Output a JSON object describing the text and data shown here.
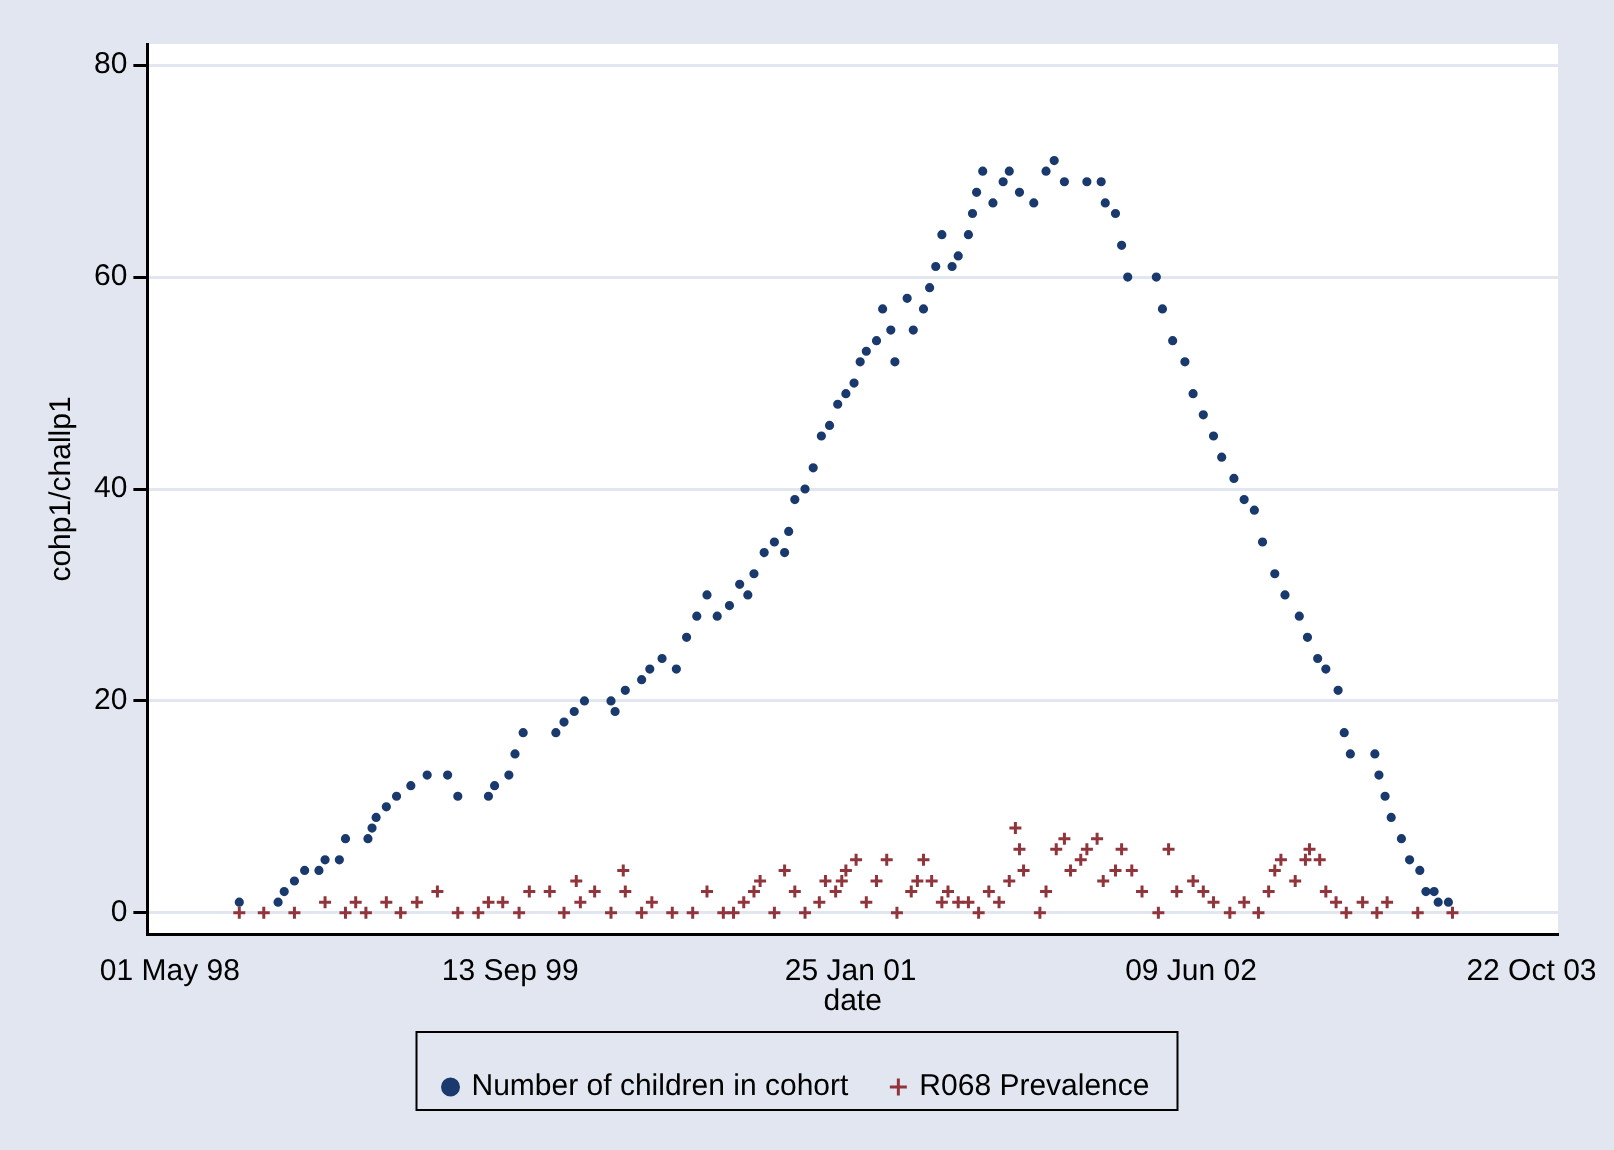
{
  "chart_data": {
    "type": "scatter",
    "xlabel": "date",
    "ylabel": "cohp1/challp1",
    "xlim": [
      "1998-03-29",
      "2003-11-30"
    ],
    "xticks": [
      {
        "value": "1998-05-01",
        "label": "01 May 98"
      },
      {
        "value": "1999-09-13",
        "label": "13 Sep 99"
      },
      {
        "value": "2001-01-25",
        "label": "25 Jan 01"
      },
      {
        "value": "2002-06-09",
        "label": "09 Jun 02"
      },
      {
        "value": "2003-10-22",
        "label": "22 Oct 03"
      }
    ],
    "ylim": [
      -2,
      82
    ],
    "yticks": [
      0,
      20,
      40,
      60,
      80
    ],
    "grid": "y",
    "legend": "bottom",
    "series": [
      {
        "name": "Number of children in cohort",
        "color": "#1a3a6e",
        "marker": "circle",
        "x": [
          "1998-08-11",
          "1998-10-07",
          "1998-10-16",
          "1998-10-31",
          "1998-11-15",
          "1998-12-06",
          "1998-12-15",
          "1999-01-05",
          "1999-01-14",
          "1999-02-16",
          "1999-02-22",
          "1999-02-28",
          "1999-03-15",
          "1999-03-30",
          "1999-04-20",
          "1999-05-14",
          "1999-06-13",
          "1999-06-28",
          "1999-08-12",
          "1999-08-21",
          "1999-09-11",
          "1999-09-20",
          "1999-10-02",
          "1999-11-19",
          "1999-12-01",
          "1999-12-16",
          "1999-12-31",
          "2000-02-08",
          "2000-02-14",
          "2000-02-29",
          "2000-03-24",
          "2000-04-05",
          "2000-04-23",
          "2000-05-14",
          "2000-05-29",
          "2000-06-13",
          "2000-06-28",
          "2000-07-13",
          "2000-07-31",
          "2000-08-15",
          "2000-08-27",
          "2000-09-05",
          "2000-09-20",
          "2000-10-05",
          "2000-10-20",
          "2000-10-26",
          "2000-11-04",
          "2000-11-19",
          "2000-12-01",
          "2000-12-13",
          "2000-12-25",
          "2001-01-06",
          "2001-01-18",
          "2001-01-30",
          "2001-02-08",
          "2001-02-17",
          "2001-03-04",
          "2001-03-13",
          "2001-03-25",
          "2001-03-31",
          "2001-04-18",
          "2001-04-27",
          "2001-05-12",
          "2001-05-21",
          "2001-05-30",
          "2001-06-08",
          "2001-06-23",
          "2001-07-02",
          "2001-07-17",
          "2001-07-23",
          "2001-07-29",
          "2001-08-07",
          "2001-08-22",
          "2001-09-06",
          "2001-09-15",
          "2001-09-30",
          "2001-10-21",
          "2001-11-08",
          "2001-11-20",
          "2001-12-05",
          "2002-01-07",
          "2002-01-28",
          "2002-02-03",
          "2002-02-18",
          "2002-02-27",
          "2002-03-08",
          "2002-04-19",
          "2002-04-28",
          "2002-05-13",
          "2002-05-31",
          "2002-06-12",
          "2002-06-27",
          "2002-07-12",
          "2002-07-24",
          "2002-08-11",
          "2002-08-26",
          "2002-09-10",
          "2002-09-22",
          "2002-10-10",
          "2002-10-25",
          "2002-11-15",
          "2002-11-27",
          "2002-12-12",
          "2002-12-24",
          "2003-01-11",
          "2003-01-20",
          "2003-01-29",
          "2003-03-06",
          "2003-03-12",
          "2003-03-21",
          "2003-03-30",
          "2003-04-14",
          "2003-04-26",
          "2003-05-11",
          "2003-05-20",
          "2003-06-01",
          "2003-06-07",
          "2003-06-22"
        ],
        "values": [
          1,
          1,
          2,
          3,
          4,
          4,
          5,
          5,
          7,
          7,
          8,
          9,
          10,
          11,
          12,
          13,
          13,
          11,
          11,
          12,
          13,
          15,
          17,
          17,
          18,
          19,
          20,
          20,
          19,
          21,
          22,
          23,
          24,
          23,
          26,
          28,
          30,
          28,
          29,
          31,
          30,
          32,
          34,
          35,
          34,
          36,
          39,
          40,
          42,
          45,
          46,
          48,
          49,
          50,
          52,
          53,
          54,
          57,
          55,
          52,
          58,
          55,
          57,
          59,
          61,
          64,
          61,
          62,
          64,
          66,
          68,
          70,
          67,
          69,
          70,
          68,
          67,
          70,
          71,
          69,
          69,
          69,
          67,
          66,
          63,
          60,
          60,
          57,
          54,
          52,
          49,
          47,
          45,
          43,
          41,
          39,
          38,
          35,
          32,
          30,
          28,
          26,
          24,
          23,
          21,
          17,
          15,
          15,
          13,
          11,
          9,
          7,
          5,
          4,
          2,
          2,
          1,
          1
        ]
      },
      {
        "name": "R068 Prevalence",
        "color": "#90353b",
        "marker": "cross",
        "x": [
          "1998-08-11",
          "1998-09-16",
          "1998-10-31",
          "1998-12-15",
          "1999-01-14",
          "1999-01-29",
          "1999-02-13",
          "1999-03-15",
          "1999-04-05",
          "1999-04-29",
          "1999-05-29",
          "1999-06-28",
          "1999-07-28",
          "1999-08-12",
          "1999-09-02",
          "1999-09-26",
          "1999-10-11",
          "1999-11-10",
          "1999-12-01",
          "1999-12-19",
          "1999-12-25",
          "2000-01-15",
          "2000-02-08",
          "2000-02-26",
          "2000-02-29",
          "2000-03-24",
          "2000-04-08",
          "2000-05-08",
          "2000-06-07",
          "2000-06-28",
          "2000-07-22",
          "2000-08-06",
          "2000-08-21",
          "2000-09-05",
          "2000-09-14",
          "2000-10-05",
          "2000-10-20",
          "2000-11-04",
          "2000-11-19",
          "2000-12-10",
          "2000-12-19",
          "2001-01-03",
          "2001-01-12",
          "2001-01-18",
          "2001-02-02",
          "2001-02-17",
          "2001-03-04",
          "2001-03-19",
          "2001-04-03",
          "2001-04-24",
          "2001-05-03",
          "2001-05-12",
          "2001-05-24",
          "2001-06-08",
          "2001-06-17",
          "2001-07-02",
          "2001-07-17",
          "2001-08-01",
          "2001-08-16",
          "2001-08-31",
          "2001-09-15",
          "2001-09-24",
          "2001-09-30",
          "2001-10-06",
          "2001-10-30",
          "2001-11-08",
          "2001-11-23",
          "2001-12-05",
          "2001-12-14",
          "2001-12-29",
          "2002-01-07",
          "2002-01-22",
          "2002-01-31",
          "2002-02-18",
          "2002-02-27",
          "2002-03-14",
          "2002-03-29",
          "2002-04-22",
          "2002-05-07",
          "2002-05-19",
          "2002-06-12",
          "2002-06-27",
          "2002-07-12",
          "2002-08-05",
          "2002-08-26",
          "2002-09-16",
          "2002-10-01",
          "2002-10-10",
          "2002-10-19",
          "2002-11-09",
          "2002-11-24",
          "2002-11-30",
          "2002-12-15",
          "2002-12-24",
          "2003-01-08",
          "2003-01-23",
          "2003-02-16",
          "2003-03-09",
          "2003-03-24",
          "2003-05-08",
          "2003-06-28"
        ],
        "values": [
          0,
          0,
          0,
          1,
          0,
          1,
          0,
          1,
          0,
          1,
          2,
          0,
          0,
          1,
          1,
          0,
          2,
          2,
          0,
          3,
          1,
          2,
          0,
          4,
          2,
          0,
          1,
          0,
          0,
          2,
          0,
          0,
          1,
          2,
          3,
          0,
          4,
          2,
          0,
          1,
          3,
          2,
          3,
          4,
          5,
          1,
          3,
          5,
          0,
          2,
          3,
          5,
          3,
          1,
          2,
          1,
          1,
          0,
          2,
          1,
          3,
          8,
          6,
          4,
          0,
          2,
          6,
          7,
          4,
          5,
          6,
          7,
          3,
          4,
          6,
          4,
          2,
          0,
          6,
          2,
          3,
          2,
          1,
          0,
          1,
          0,
          2,
          4,
          5,
          3,
          5,
          6,
          5,
          2,
          1,
          0,
          1,
          0,
          1,
          0,
          0
        ]
      }
    ]
  }
}
